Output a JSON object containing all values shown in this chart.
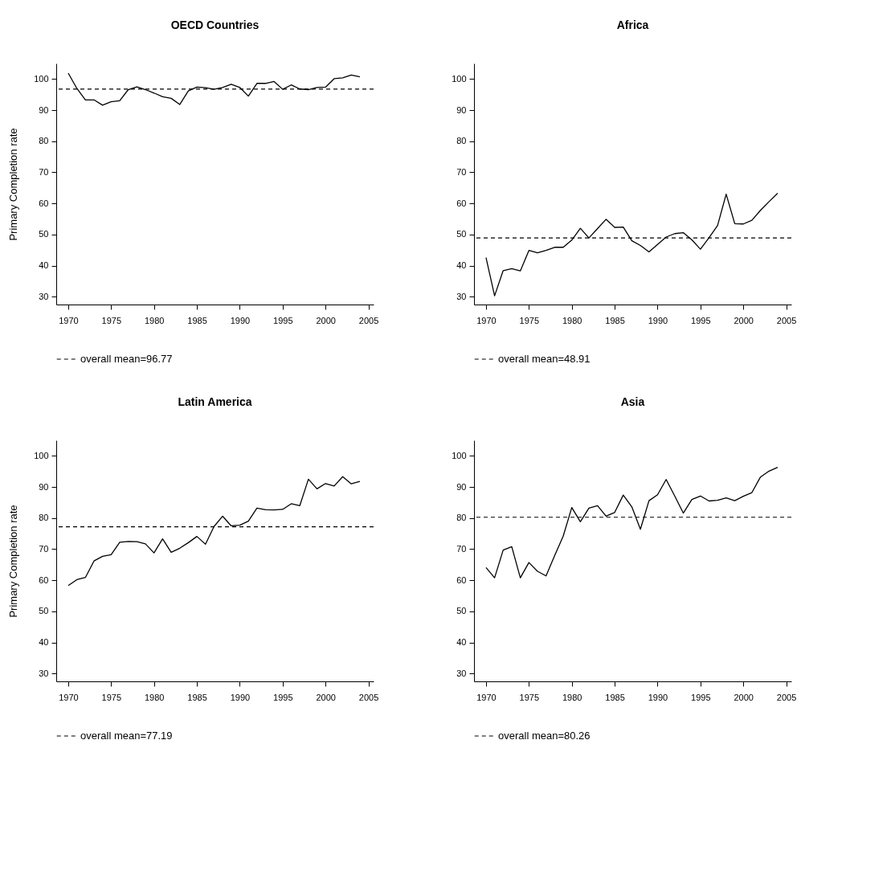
{
  "chart_data": [
    {
      "type": "line",
      "title": "OECD Countries",
      "ylabel": "Primary Completion rate",
      "x": [
        1970,
        1971,
        1972,
        1973,
        1974,
        1975,
        1976,
        1977,
        1978,
        1979,
        1980,
        1981,
        1982,
        1983,
        1984,
        1985,
        1986,
        1987,
        1988,
        1989,
        1990,
        1991,
        1992,
        1993,
        1994,
        1995,
        1996,
        1997,
        1998,
        1999,
        2000,
        2001,
        2002,
        2003,
        2004
      ],
      "series": [
        {
          "color": "#000000",
          "values": [
            101.9,
            97,
            93.3,
            93.3,
            91.6,
            92.7,
            93,
            96.6,
            97.5,
            96.6,
            95.5,
            94.3,
            93.8,
            91.8,
            96.2,
            97.4,
            97.2,
            96.7,
            97.3,
            98.3,
            97.3,
            94.5,
            98.6,
            98.6,
            99.2,
            96.7,
            98.1,
            96.8,
            96.6,
            97.3,
            97.4,
            100.1,
            100.4,
            101.3,
            100.7
          ]
        }
      ],
      "ref_lines": [
        {
          "axis": "y",
          "value": 96.77,
          "label": "overall mean=96.77",
          "line_style": "dashed",
          "color": "#000000"
        }
      ],
      "xlim": [
        1968.6,
        2005.6
      ],
      "ylim": [
        27.5,
        105
      ],
      "xticks": [
        1970,
        1975,
        1980,
        1985,
        1990,
        1995,
        2000,
        2005
      ],
      "yticks": [
        30,
        40,
        50,
        60,
        70,
        80,
        90,
        100
      ],
      "grid": false,
      "line_style": "solid"
    },
    {
      "type": "line",
      "title": "Africa",
      "x": [
        1970,
        1971,
        1972,
        1973,
        1974,
        1975,
        1976,
        1977,
        1978,
        1979,
        1980,
        1981,
        1982,
        1983,
        1984,
        1985,
        1986,
        1987,
        1988,
        1989,
        1990,
        1991,
        1992,
        1993,
        1994,
        1995,
        1996,
        1997,
        1998,
        1999,
        2000,
        2001,
        2002,
        2003,
        2004
      ],
      "series": [
        {
          "color": "#000000",
          "values": [
            42.6,
            30.3,
            38.4,
            39,
            38.3,
            44.9,
            44.1,
            44.9,
            45.9,
            45.9,
            48.2,
            52,
            48.9,
            51.9,
            54.9,
            52.3,
            52.4,
            48,
            46.5,
            44.4,
            46.8,
            49.2,
            50.3,
            50.6,
            48.3,
            45.3,
            49,
            52.9,
            63,
            53.5,
            53.4,
            54.6,
            57.8,
            60.6,
            63.3
          ]
        }
      ],
      "ref_lines": [
        {
          "axis": "y",
          "value": 48.91,
          "label": "overall mean=48.91",
          "line_style": "dashed",
          "color": "#000000"
        }
      ],
      "xlim": [
        1968.6,
        2005.6
      ],
      "ylim": [
        27.5,
        105
      ],
      "xticks": [
        1970,
        1975,
        1980,
        1985,
        1990,
        1995,
        2000,
        2005
      ],
      "yticks": [
        30,
        40,
        50,
        60,
        70,
        80,
        90,
        100
      ],
      "grid": false,
      "line_style": "solid"
    },
    {
      "type": "line",
      "title": "Latin America",
      "ylabel": "Primary Completion rate",
      "x": [
        1970,
        1971,
        1972,
        1973,
        1974,
        1975,
        1976,
        1977,
        1978,
        1979,
        1980,
        1981,
        1982,
        1983,
        1984,
        1985,
        1986,
        1987,
        1988,
        1989,
        1990,
        1991,
        1992,
        1993,
        1994,
        1995,
        1996,
        1997,
        1998,
        1999,
        2000,
        2001,
        2002,
        2003,
        2004
      ],
      "series": [
        {
          "color": "#000000",
          "values": [
            58.3,
            60.2,
            60.9,
            66.2,
            67.7,
            68.2,
            72.2,
            72.5,
            72.4,
            71.7,
            68.8,
            73.3,
            69,
            70.3,
            72.1,
            74.1,
            71.6,
            77.3,
            80.6,
            77.5,
            77.7,
            79,
            83.2,
            82.7,
            82.6,
            82.8,
            84.6,
            84,
            92.5,
            89.4,
            91.1,
            90.3,
            93.3,
            91,
            91.8
          ]
        }
      ],
      "ref_lines": [
        {
          "axis": "y",
          "value": 77.19,
          "label": "overall mean=77.19",
          "line_style": "dashed",
          "color": "#000000"
        }
      ],
      "xlim": [
        1968.6,
        2005.6
      ],
      "ylim": [
        27.5,
        105
      ],
      "xticks": [
        1970,
        1975,
        1980,
        1985,
        1990,
        1995,
        2000,
        2005
      ],
      "yticks": [
        30,
        40,
        50,
        60,
        70,
        80,
        90,
        100
      ],
      "grid": false,
      "line_style": "solid"
    },
    {
      "type": "line",
      "title": "Asia",
      "x": [
        1970,
        1971,
        1972,
        1973,
        1974,
        1975,
        1976,
        1977,
        1978,
        1979,
        1980,
        1981,
        1982,
        1983,
        1984,
        1985,
        1986,
        1987,
        1988,
        1989,
        1990,
        1991,
        1992,
        1993,
        1994,
        1995,
        1996,
        1997,
        1998,
        1999,
        2000,
        2001,
        2002,
        2003,
        2004
      ],
      "series": [
        {
          "color": "#000000",
          "values": [
            64.1,
            60.8,
            69.7,
            70.8,
            60.8,
            65.7,
            62.9,
            61.4,
            67.9,
            74.2,
            83.4,
            78.8,
            83.2,
            84,
            80.6,
            81.8,
            87.4,
            83.6,
            76.4,
            85.6,
            87.5,
            92.4,
            87.1,
            81.6,
            86,
            87.1,
            85.5,
            85.7,
            86.5,
            85.6,
            87,
            88.2,
            93.2,
            95.1,
            96.3
          ]
        }
      ],
      "ref_lines": [
        {
          "axis": "y",
          "value": 80.26,
          "label": "overall mean=80.26",
          "line_style": "dashed",
          "color": "#000000"
        }
      ],
      "xlim": [
        1968.6,
        2005.6
      ],
      "ylim": [
        27.5,
        105
      ],
      "xticks": [
        1970,
        1975,
        1980,
        1985,
        1990,
        1995,
        2000,
        2005
      ],
      "yticks": [
        30,
        40,
        50,
        60,
        70,
        80,
        90,
        100
      ],
      "grid": false,
      "line_style": "solid"
    }
  ]
}
